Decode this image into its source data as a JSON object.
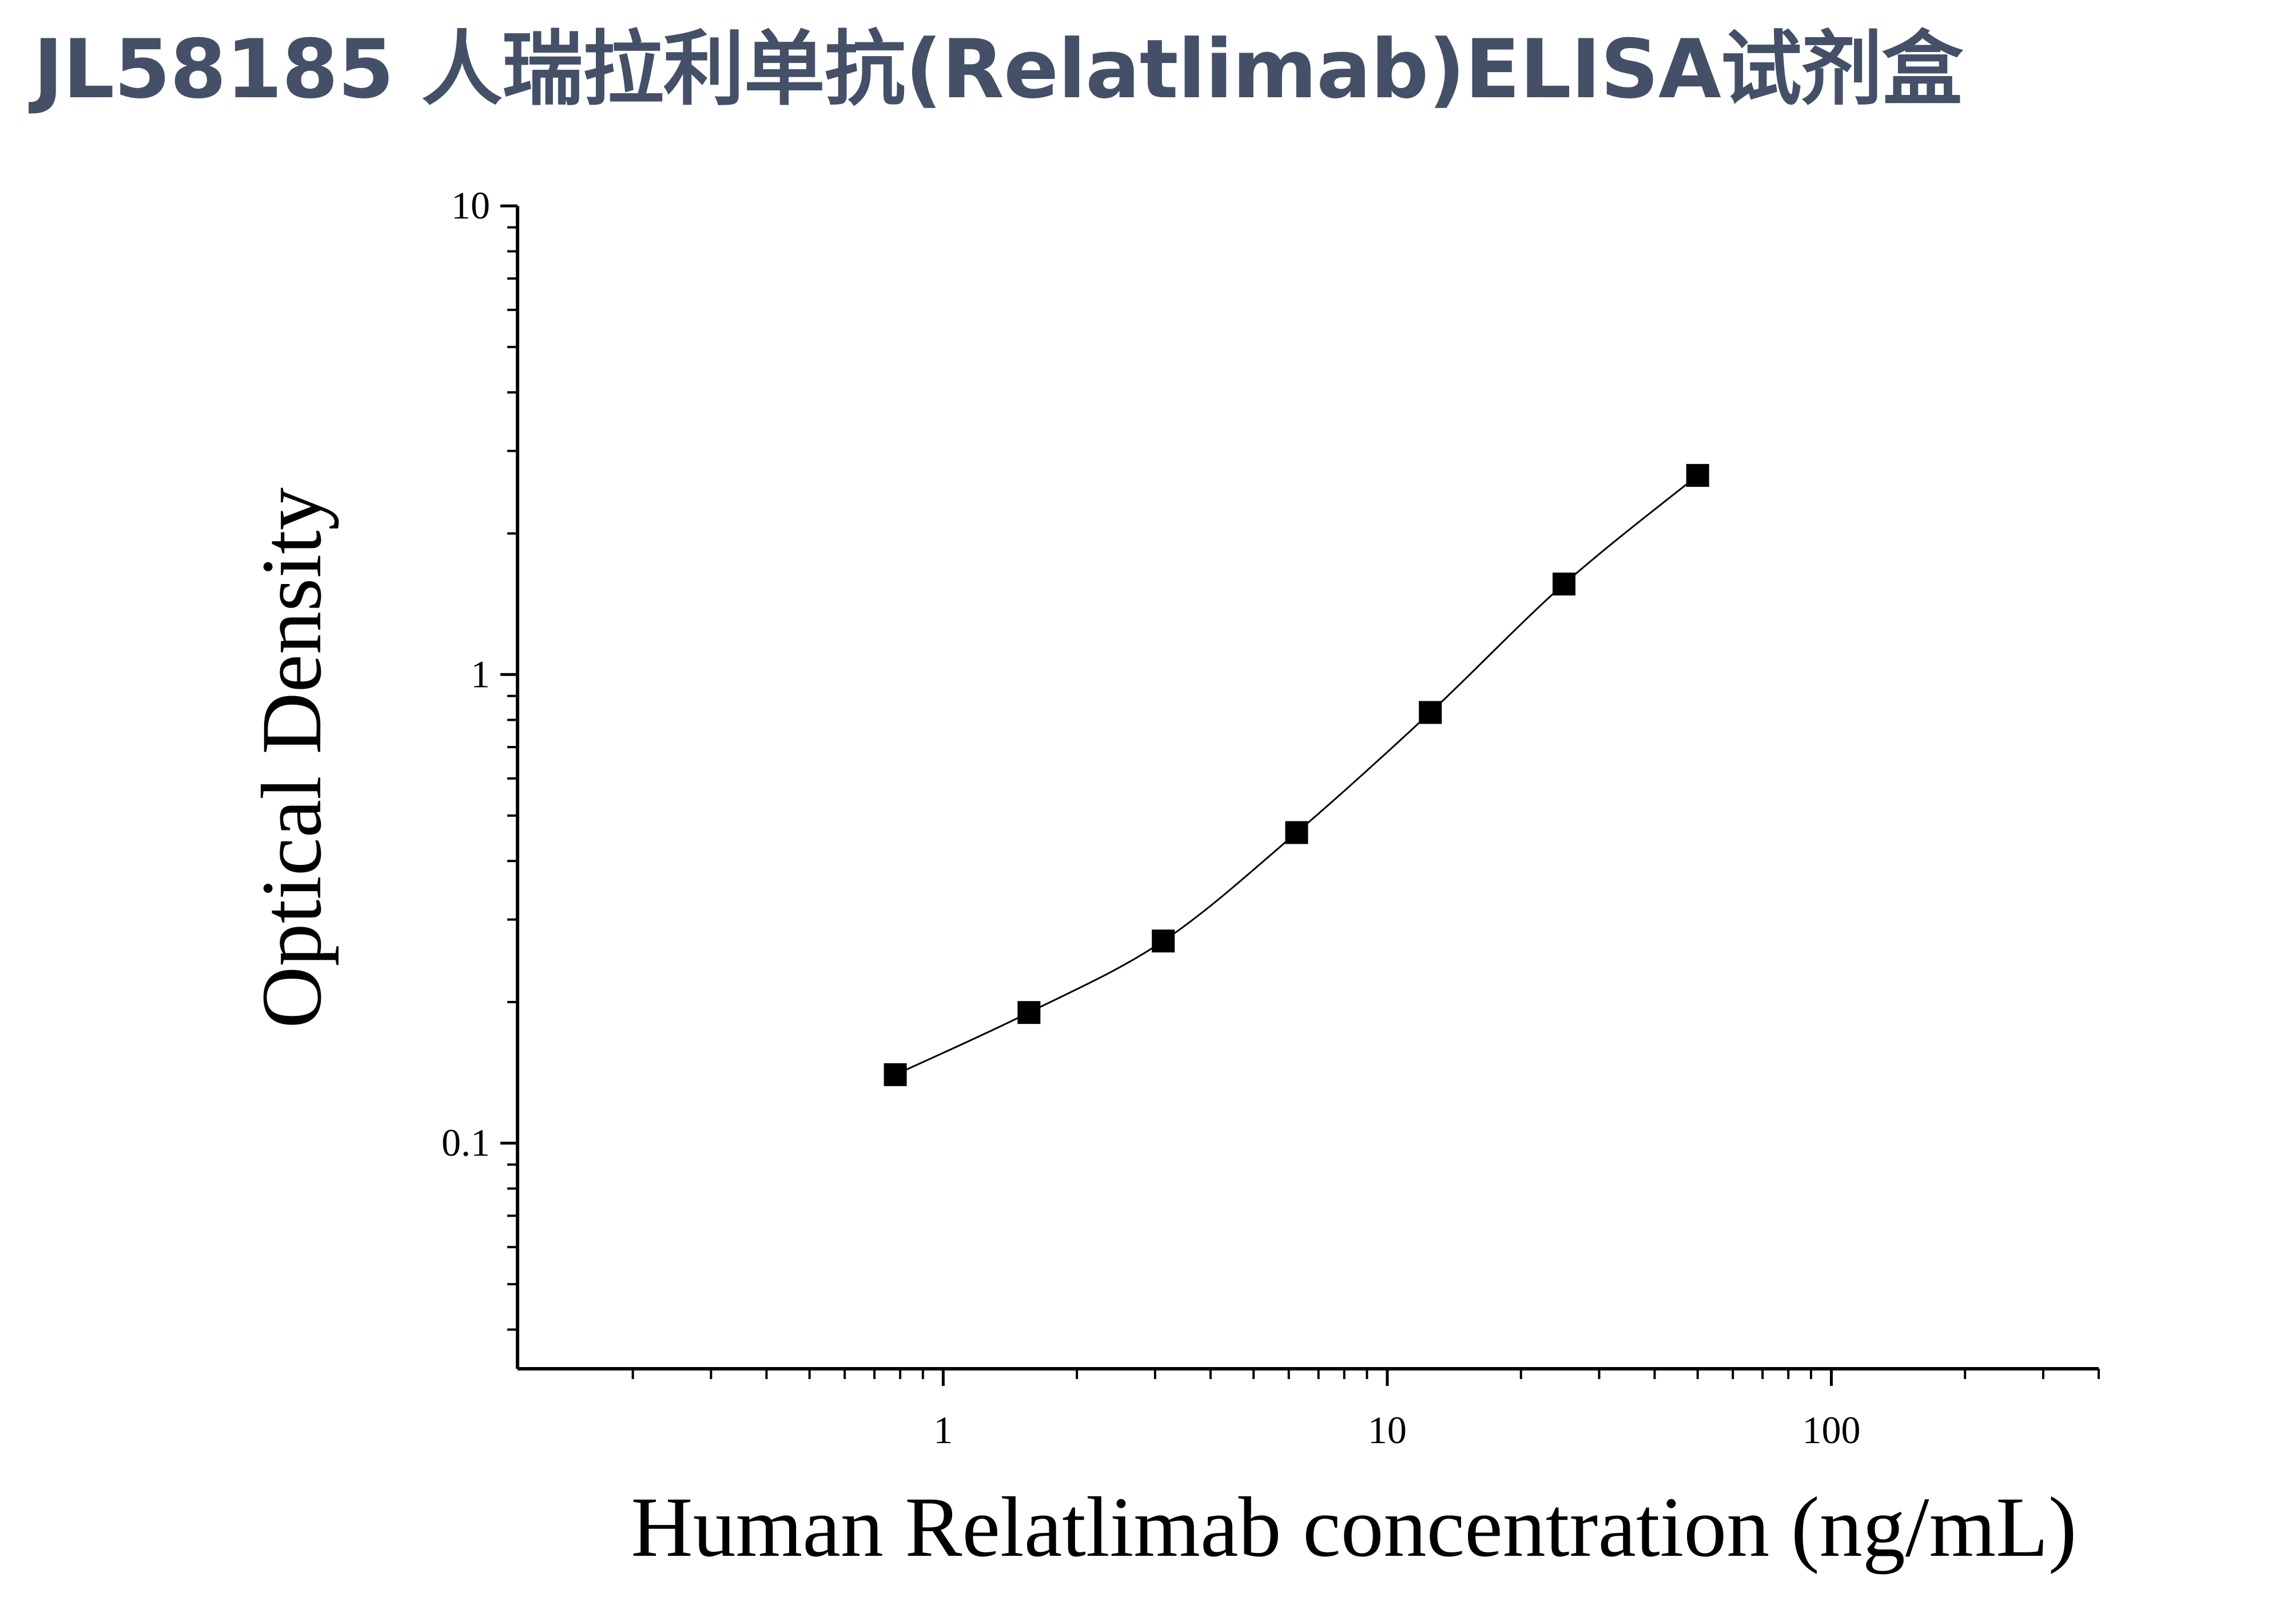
{
  "chart_data": {
    "type": "scatter",
    "title": "JL58185 人瑞拉利单抗(Relatlimab)ELISA试剂盒",
    "xlabel": "Human Relatlimab concentration (ng/mL)",
    "ylabel": "Optical Density",
    "x_scale": "log",
    "y_scale": "log",
    "xlim": [
      0.11,
      400
    ],
    "ylim": [
      0.033,
      10
    ],
    "x_ticks": [
      {
        "value": 1,
        "label": "1"
      },
      {
        "value": 10,
        "label": "10"
      },
      {
        "value": 100,
        "label": "100"
      }
    ],
    "y_ticks": [
      {
        "value": 0.1,
        "label": "0.1"
      },
      {
        "value": 1,
        "label": "1"
      },
      {
        "value": 10,
        "label": "10"
      }
    ],
    "grid": false,
    "legend": "none",
    "series": [
      {
        "x": [
          0.78,
          1.56,
          3.13,
          6.25,
          12.5,
          25,
          50
        ],
        "y": [
          0.14,
          0.19,
          0.27,
          0.46,
          0.83,
          1.56,
          2.66
        ]
      }
    ]
  }
}
